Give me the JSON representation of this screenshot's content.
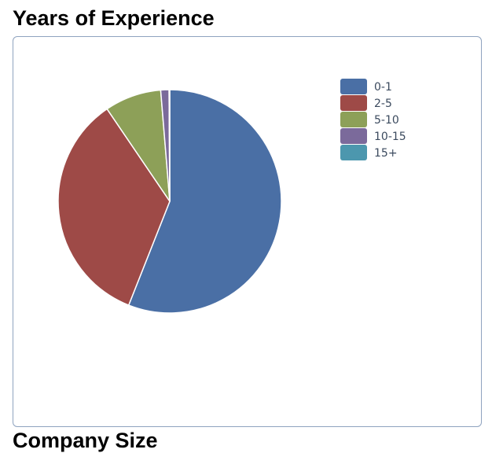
{
  "page": {
    "title": "Years of Experience",
    "next_section_title": "Company Size"
  },
  "chart_data": {
    "type": "pie",
    "title": "",
    "categories": [
      "0-1",
      "2-5",
      "5-10",
      "10-15",
      "15+"
    ],
    "values": [
      56,
      34.5,
      8.2,
      1.2,
      0.1
    ],
    "colors": [
      "#4a6fa5",
      "#9e4a47",
      "#8da058",
      "#7b6a9b",
      "#4c97ae"
    ],
    "legend": "top-right"
  }
}
